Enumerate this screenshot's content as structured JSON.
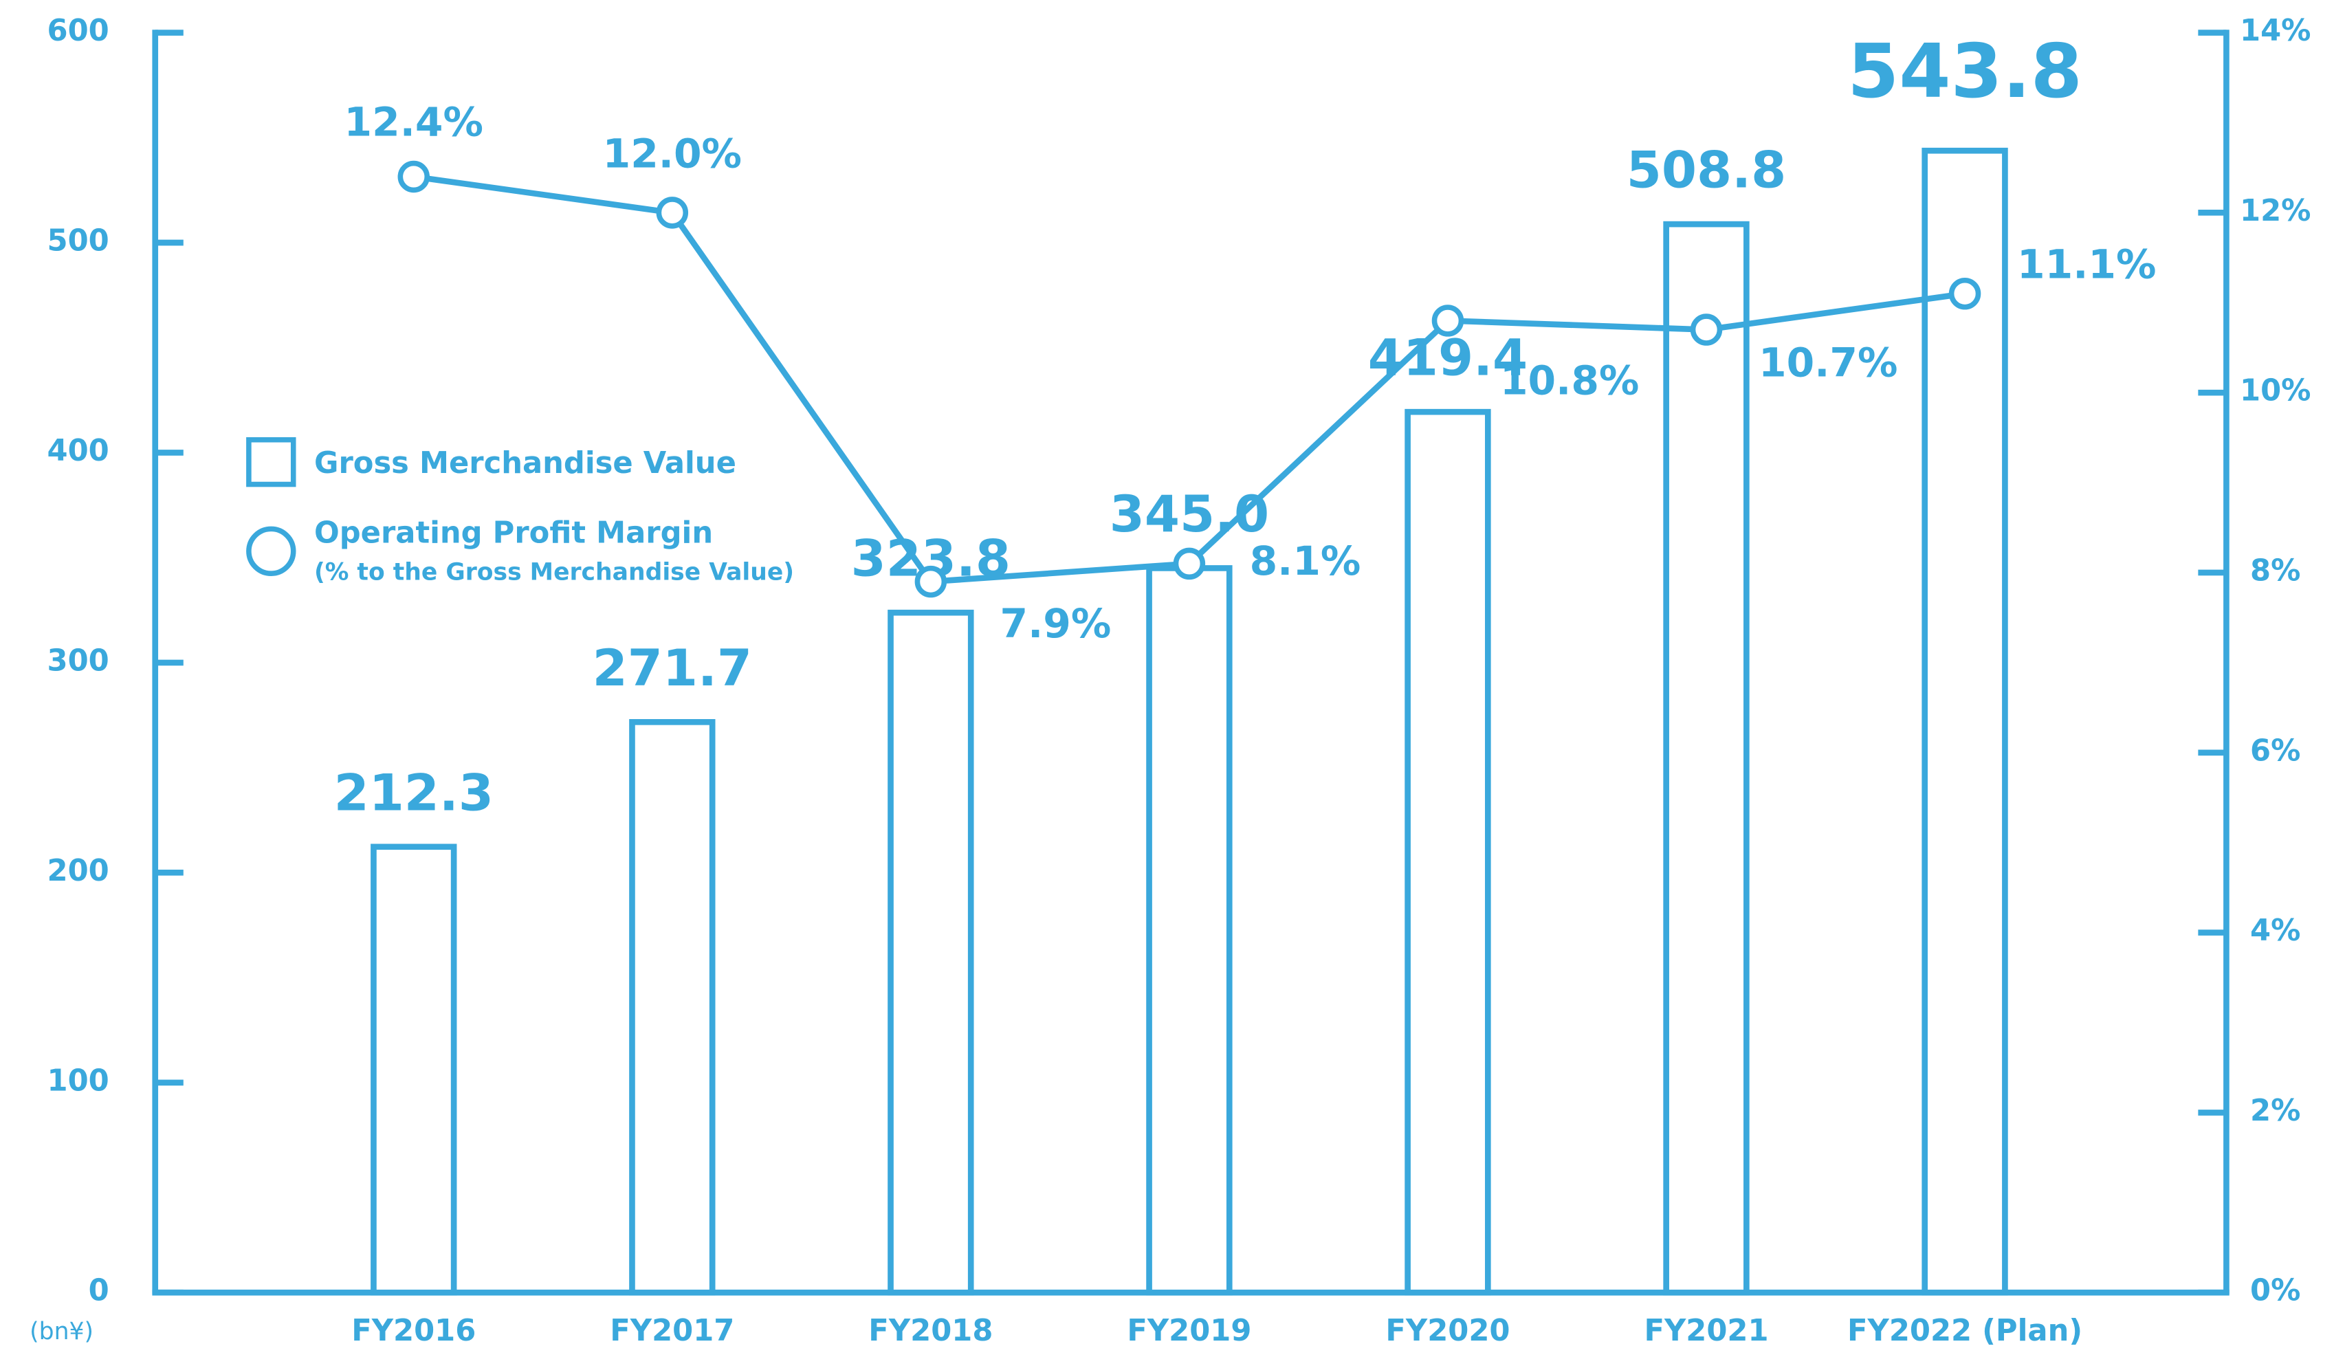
{
  "chart_data": {
    "type": "bar",
    "y_unit": "(bn¥)",
    "categories": [
      "FY2016",
      "FY2017",
      "FY2018",
      "FY2019",
      "FY2020",
      "FY2021",
      "FY2022 (Plan)"
    ],
    "series": [
      {
        "name": "Gross Merchandise Value",
        "type": "bar",
        "color": "#3aa8dc",
        "values": [
          212.3,
          271.7,
          323.8,
          345.0,
          419.4,
          508.8,
          543.8
        ],
        "value_labels": [
          "212.3",
          "271.7",
          "323.8",
          "345.0",
          "419.4",
          "508.8",
          "543.8"
        ]
      },
      {
        "name": "Operating Profit Margin",
        "type": "line",
        "axis": "y2",
        "color": "#3aa8dc",
        "values": [
          12.4,
          12.0,
          7.9,
          8.1,
          10.8,
          10.7,
          11.1
        ],
        "value_labels": [
          "12.4%",
          "12.0%",
          "7.9%",
          "8.1%",
          "10.8%",
          "10.7%",
          "11.1%"
        ]
      }
    ],
    "legend_note": "(% to the Gross Merchandise Value)",
    "ylim": [
      0,
      600
    ],
    "yticks": [
      0,
      100,
      200,
      300,
      400,
      500,
      600
    ],
    "y2lim": [
      0,
      14
    ],
    "y2ticks": [
      {
        "value": 0,
        "label": "0%"
      },
      {
        "value": 2,
        "label": "2%"
      },
      {
        "value": 4,
        "label": "4%"
      },
      {
        "value": 6,
        "label": "6%"
      },
      {
        "value": 8,
        "label": "8%"
      },
      {
        "value": 10,
        "label": "10%"
      },
      {
        "value": 12,
        "label": "12%"
      },
      {
        "value": 14,
        "label": "14%"
      }
    ]
  }
}
